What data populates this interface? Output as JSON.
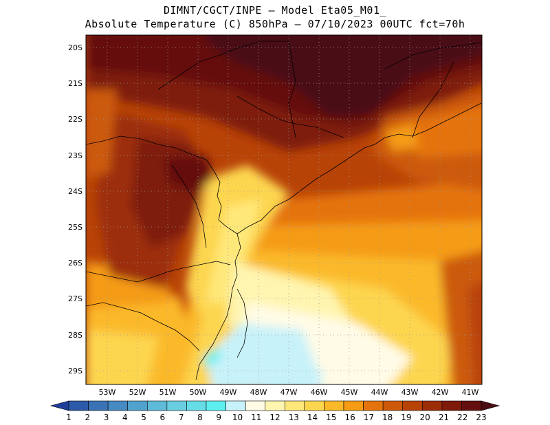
{
  "title": {
    "line1": "DIMNT/CGCT/INPE –  Model Eta05_M01_",
    "line2": "Absolute Temperature (C) 850hPa –  07/10/2023 00UTC fct=70h"
  },
  "map": {
    "lat_labels": [
      "20S",
      "21S",
      "22S",
      "23S",
      "24S",
      "25S",
      "26S",
      "27S",
      "28S",
      "29S"
    ],
    "lon_labels": [
      "53W",
      "52W",
      "51W",
      "50W",
      "49W",
      "48W",
      "47W",
      "46W",
      "45W",
      "44W",
      "43W",
      "42W",
      "41W"
    ]
  },
  "colorbar": {
    "labels": [
      "1",
      "2",
      "3",
      "4",
      "5",
      "6",
      "7",
      "8",
      "9",
      "10",
      "11",
      "12",
      "13",
      "14",
      "15",
      "16",
      "17",
      "18",
      "19",
      "20",
      "21",
      "22",
      "23"
    ],
    "colors": [
      "#1f3d99",
      "#2d5aa8",
      "#3a72b5",
      "#468ac2",
      "#52a2ce",
      "#5ebad8",
      "#69cfe0",
      "#66dde6",
      "#5cf0f0",
      "#c8f2fa",
      "#fffbe6",
      "#fff5b0",
      "#ffe87a",
      "#fdd650",
      "#fbb92a",
      "#f59b14",
      "#e5730d",
      "#cc5a0a",
      "#b84307",
      "#9c2e07",
      "#7e1a0a",
      "#651010",
      "#4a0d12"
    ]
  }
}
